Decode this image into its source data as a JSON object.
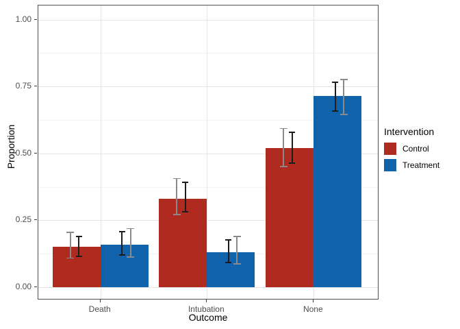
{
  "chart_data": {
    "type": "bar",
    "title": "",
    "xlabel": "Outcome",
    "ylabel": "Proportion",
    "categories": [
      "Death",
      "Intubation",
      "None"
    ],
    "ylim": [
      0,
      1
    ],
    "grid": true,
    "y_axis": {
      "tick_values": [
        0,
        0.25,
        0.5,
        0.75,
        1.0
      ],
      "tick_labels": [
        "0.00",
        "0.25",
        "0.50",
        "0.75",
        "1.00"
      ],
      "minor_values": [
        0.125,
        0.375,
        0.625,
        0.875
      ]
    },
    "legend": {
      "title": "Intervention",
      "position": "right"
    },
    "error_bar_colors": {
      "black": "#1c1c1c",
      "gray": "#8a8a8a"
    },
    "series": [
      {
        "name": "Control",
        "color": "#af2a1f",
        "values": [
          0.15,
          0.33,
          0.52
        ],
        "error_gray": [
          [
            0.107,
            0.207
          ],
          [
            0.269,
            0.408
          ],
          [
            0.449,
            0.595
          ]
        ],
        "error_black": [
          [
            0.113,
            0.192
          ],
          [
            0.279,
            0.395
          ],
          [
            0.462,
            0.582
          ]
        ]
      },
      {
        "name": "Treatment",
        "color": "#1062aa",
        "values": [
          0.16,
          0.13,
          0.715
        ],
        "error_gray": [
          [
            0.11,
            0.221
          ],
          [
            0.085,
            0.192
          ],
          [
            0.644,
            0.779
          ]
        ],
        "error_black": [
          [
            0.118,
            0.21
          ],
          [
            0.09,
            0.179
          ],
          [
            0.656,
            0.769
          ]
        ]
      }
    ]
  }
}
